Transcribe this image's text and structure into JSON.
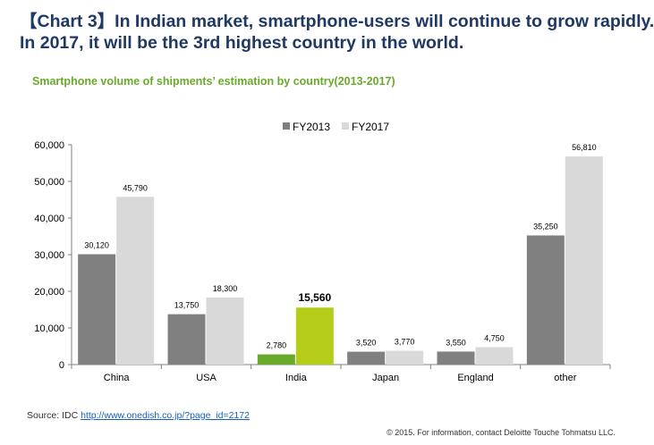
{
  "header": {
    "line1": "【Chart 3】In Indian market, smartphone-users will continue to grow rapidly.",
    "line2": "In 2017, it will be the 3rd highest country in the world."
  },
  "chart_data": {
    "type": "bar",
    "title": "Smartphone volume of shipments’ estimation by country(2013-2017)",
    "categories": [
      "China",
      "USA",
      "India",
      "Japan",
      "England",
      "other"
    ],
    "series": [
      {
        "name": "FY2013",
        "values": [
          30120,
          13750,
          2780,
          3520,
          3550,
          35250
        ],
        "color": "#808080"
      },
      {
        "name": "FY2017",
        "values": [
          45790,
          18300,
          15560,
          3770,
          4750,
          56810
        ],
        "color": "#d9d9d9"
      }
    ],
    "highlight": {
      "category": "India",
      "colors": [
        "#6aaa2a",
        "#b5cc18"
      ],
      "bold_label_series": "FY2017"
    },
    "ylim": [
      0,
      60000
    ],
    "yticks": [
      0,
      10000,
      20000,
      30000,
      40000,
      50000,
      60000
    ],
    "xlabel": "",
    "ylabel": "",
    "grid": false,
    "legend": "top-center"
  },
  "footer": {
    "source_label": "Source: IDC",
    "source_link": "http://www.onedish.co.jp/?page_id=2172",
    "copyright": "© 2015. For information, contact Deloitte Touche Tohmatsu LLC."
  }
}
